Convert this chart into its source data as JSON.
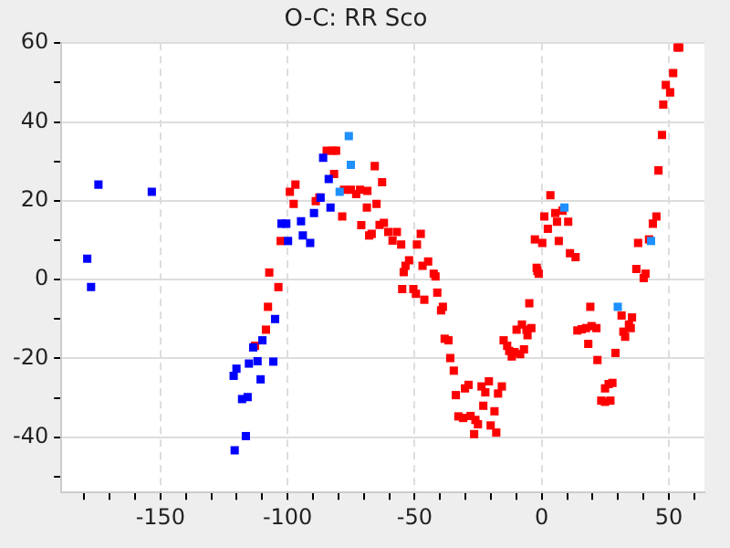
{
  "chart_data": {
    "type": "scatter",
    "title": "O-C: RR Sco",
    "xlim": [
      -189,
      64
    ],
    "xticks": [
      {
        "value": -180,
        "label": null
      },
      {
        "value": -170,
        "label": null
      },
      {
        "value": -160,
        "label": null
      },
      -150,
      {
        "value": -140,
        "label": null
      },
      {
        "value": -130,
        "label": null
      },
      {
        "value": -120,
        "label": null
      },
      {
        "value": -110,
        "label": null
      },
      -100,
      {
        "value": -90,
        "label": null
      },
      {
        "value": -80,
        "label": null
      },
      {
        "value": -70,
        "label": null
      },
      {
        "value": -60,
        "label": null
      },
      -50,
      {
        "value": -40,
        "label": null
      },
      {
        "value": -30,
        "label": null
      },
      {
        "value": -20,
        "label": null
      },
      {
        "value": -10,
        "label": null
      },
      0,
      {
        "value": 10,
        "label": null
      },
      {
        "value": 20,
        "label": null
      },
      {
        "value": 30,
        "label": null
      },
      {
        "value": 40,
        "label": null
      },
      50,
      {
        "value": 60,
        "label": null
      }
    ],
    "ylim": [
      -54,
      60
    ],
    "yticks": [
      {
        "value": -50,
        "label": null
      },
      -40,
      {
        "value": -30,
        "label": null
      },
      -20,
      {
        "value": -10,
        "label": null
      },
      0,
      {
        "value": 10,
        "label": null
      },
      20,
      {
        "value": 30,
        "label": null
      },
      40,
      {
        "value": 50,
        "label": null
      },
      60
    ],
    "grid": true,
    "marker": "square",
    "series": [
      {
        "color": "#ff0000",
        "x": [
          -107.2,
          -103.6,
          -107.7,
          -108.5,
          -112.8,
          -102.7,
          -99.1,
          -96.9,
          -97.6,
          -88.9,
          -87.5,
          -84.6,
          -82.1,
          -80.9,
          -81.7,
          -78.5,
          -77.8,
          -75.1,
          -73,
          -71.5,
          -71,
          -65.7,
          -62.8,
          -68.6,
          -65,
          -68.8,
          -62.1,
          -63.8,
          -60.4,
          -57,
          -66.9,
          -67.9,
          -58.7,
          -55.3,
          -47.6,
          -49.1,
          -52.2,
          -44.7,
          -46.9,
          -53.6,
          -54.3,
          -54.9,
          -50.5,
          -49.5,
          -46.2,
          -42.5,
          -41.8,
          -41.1,
          -38.9,
          -39.6,
          -38.2,
          -36.7,
          -36,
          -34.6,
          -33.8,
          -30.2,
          -28.8,
          -32.8,
          -30.9,
          -28,
          -26.1,
          -25.1,
          -26.6,
          -23,
          -23.7,
          -22.2,
          -20.8,
          -18.6,
          -20.1,
          -17.9,
          -17.2,
          -15.7,
          -15,
          -13.6,
          -12.8,
          -11.8,
          -10.7,
          -8.5,
          -7,
          -9.9,
          -7.8,
          -6,
          -4.1,
          -5.6,
          -4.9,
          -1.2,
          -1.7,
          3.4,
          1,
          5.3,
          8.2,
          6,
          10.4,
          2.4,
          -2.7,
          0.2,
          6.7,
          11.1,
          13.3,
          -2,
          53.4,
          54.1,
          51.7,
          48.8,
          50.5,
          47.8,
          47.3,
          45.9,
          45.1,
          43.7,
          37.9,
          42.2,
          37.2,
          31.4,
          35.5,
          34.3,
          35,
          32.1,
          32.8,
          29,
          19.1,
          14,
          15.7,
          17.4,
          19.6,
          21.5,
          18.3,
          21.9,
          24.9,
          26.3,
          27.8,
          23.4,
          24.9,
          27,
          40.1,
          40.8
        ],
        "values": [
          1.8,
          -1.9,
          -6.9,
          -12.7,
          -16.8,
          9.8,
          22.3,
          24.1,
          19.2,
          19.9,
          20.8,
          32.7,
          32.7,
          32.7,
          26.8,
          16,
          22.8,
          22.8,
          21.7,
          22.8,
          13.8,
          28.8,
          24.7,
          22.5,
          19.2,
          18.3,
          14.4,
          13.9,
          12.1,
          12.1,
          11.6,
          11.2,
          9.9,
          8.9,
          11.6,
          8.9,
          4.9,
          4.6,
          3.5,
          3.5,
          1.9,
          -2.4,
          -2.4,
          -3.6,
          -5.1,
          1.5,
          0.8,
          -3.3,
          -6.9,
          -7.8,
          -15,
          -15.4,
          -19.9,
          -23.1,
          -29.3,
          -27.6,
          -26.7,
          -34.7,
          -35.1,
          -34.6,
          -35.6,
          -36.7,
          -39.2,
          -32,
          -27.1,
          -28.6,
          -25.8,
          -33.4,
          -37,
          -38.8,
          -28.9,
          -27.1,
          -15.4,
          -16.8,
          -18.1,
          -19.5,
          -18.4,
          -18.9,
          -17.7,
          -12.7,
          -11.4,
          -12.7,
          -12.3,
          -14.1,
          -6,
          1.5,
          2.2,
          21.4,
          16,
          16.9,
          17.5,
          14.7,
          14.7,
          12.9,
          10.2,
          9.3,
          9.8,
          6.7,
          5.7,
          3,
          58.9,
          58.9,
          52.4,
          49.4,
          47.5,
          44.4,
          36.7,
          27.7,
          16,
          14.2,
          9.3,
          10.2,
          2.7,
          -9.1,
          -9.6,
          -11.4,
          -12.3,
          -13.2,
          -14.5,
          -18.6,
          -6.9,
          -12.9,
          -12.6,
          -12.3,
          -11.8,
          -12.3,
          -16.3,
          -20.4,
          -27.6,
          -26.5,
          -26.2,
          -30.7,
          -31,
          -30.7,
          0.4,
          1.5
        ]
      },
      {
        "color": "#0000ff",
        "x": [
          -178.8,
          -174.4,
          -153.4,
          -177.3,
          -104.9,
          -109.9,
          -113.5,
          -111.8,
          -115.2,
          -105.6,
          -120.1,
          -121.2,
          -110.6,
          -115.7,
          -117.9,
          -116.4,
          -120.8,
          -102.4,
          -100.5,
          -94.7,
          -94,
          -91.1,
          -99.8,
          -89.6,
          -87,
          -83.1,
          -86,
          -83.8
        ],
        "values": [
          5.3,
          24.1,
          22.3,
          -1.9,
          -10,
          -15.4,
          -17.2,
          -20.7,
          -21.3,
          -20.8,
          -22.6,
          -24.4,
          -25.3,
          -29.8,
          -30.3,
          -39.7,
          -43.3,
          14.2,
          14.2,
          14.8,
          11.2,
          9.3,
          9.8,
          16.9,
          20.8,
          18.3,
          30.9,
          25.5
        ]
      },
      {
        "color": "#1e90ff",
        "x": [
          -75.9,
          -75.1,
          -79.5,
          8.9,
          29.9,
          43
        ],
        "values": [
          36.4,
          29.1,
          22.3,
          18.3,
          -6.9,
          9.8
        ]
      }
    ]
  }
}
